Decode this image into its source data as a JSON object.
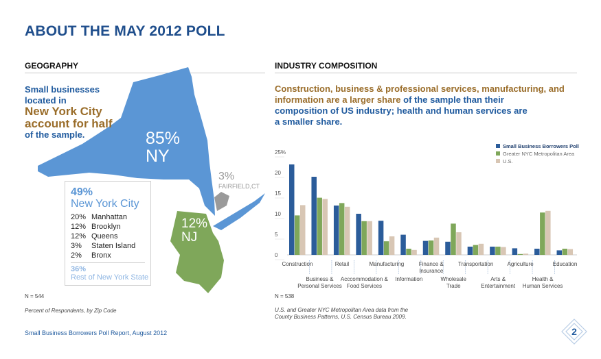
{
  "title": "ABOUT THE MAY 2012 POLL",
  "geography": {
    "heading": "GEOGRAPHY",
    "intro_line1": "Small businesses",
    "intro_line2": "located in",
    "highlight_line1": "New York City",
    "highlight_line2": "account for half",
    "outro": "of the sample.",
    "ny_pct": "85%",
    "ny_label": "NY",
    "ct_pct": "3%",
    "ct_label": "FAIRFIELD,CT",
    "nj_pct": "12%",
    "nj_label": "NJ",
    "nyc_box": {
      "pct": "49%",
      "label": "New York City",
      "rows": [
        {
          "pct": "20%",
          "name": "Manhattan"
        },
        {
          "pct": "12%",
          "name": "Brooklyn"
        },
        {
          "pct": "12%",
          "name": "Queens"
        },
        {
          "pct": "3%",
          "name": "Staten Island"
        },
        {
          "pct": "2%",
          "name": "Bronx"
        }
      ],
      "rest_pct": "36%",
      "rest_label": "Rest of New York State"
    },
    "n_note": "N = 544",
    "footnote": "Percent of Respondents, by Zip Code"
  },
  "industry": {
    "heading": "INDUSTRY COMPOSITION",
    "summary_gold": "Construction, business & professional services, manufacturing, and information are a larger share",
    "summary_blue1": " of the sample than their",
    "summary_blue2": "composition of US industry; health and human services are",
    "summary_blue3": "a smaller share.",
    "n_note": "N = 538",
    "source_line1": "U.S. and Greater NYC Metropolitan Area data from the",
    "source_line2": "County Business Patterns, U.S. Census Bureau 2009."
  },
  "footer": {
    "report": "Small Business Borrowers Poll Report, August 2012",
    "page": "2"
  },
  "colors": {
    "navy": "#2b5c9a",
    "green": "#7fa75a",
    "tan": "#d8c6b4",
    "title_blue": "#1f4e8c",
    "gold": "#9a6d2a",
    "map_blue": "#5b96d5",
    "map_green": "#7fa75a",
    "map_gray": "#9a9a9a"
  },
  "chart_data": {
    "type": "bar",
    "ylim": [
      0,
      25
    ],
    "yticks": [
      "25%",
      "20",
      "15",
      "10",
      "5",
      "0"
    ],
    "categories": [
      "Construction",
      "Business & Personal Services",
      "Retail",
      "Acccommodation & Food Services",
      "Manufacturing",
      "Information",
      "Finance & Insurance",
      "Wholesale Trade",
      "Transportation",
      "Arts & Entertainment",
      "Agriculture",
      "Health & Human Services",
      "Education"
    ],
    "category_labels": [
      {
        "top": "Construction",
        "bottom": ""
      },
      {
        "top": "",
        "bottom": "Business &|Personal Services"
      },
      {
        "top": "Retail",
        "bottom": ""
      },
      {
        "top": "",
        "bottom": "Acccommodation &|Food Services"
      },
      {
        "top": "Manufacturing",
        "bottom": ""
      },
      {
        "top": "",
        "bottom": "Information"
      },
      {
        "top": "Finance &|Insurance",
        "bottom": ""
      },
      {
        "top": "",
        "bottom": "Wholesale|Trade"
      },
      {
        "top": "Transportation",
        "bottom": ""
      },
      {
        "top": "",
        "bottom": "Arts &|Entertainment"
      },
      {
        "top": "Agriculture",
        "bottom": ""
      },
      {
        "top": "",
        "bottom": "Health &|Human Services"
      },
      {
        "top": "Education",
        "bottom": ""
      }
    ],
    "series": [
      {
        "name": "Small Business Borrowers Poll",
        "values": [
          22,
          19,
          12,
          10,
          8.3,
          4.9,
          3.4,
          3.2,
          2.0,
          2.0,
          1.6,
          1.5,
          1.1
        ]
      },
      {
        "name": "Greater NYC Metropolitan Area",
        "values": [
          9.6,
          13.9,
          12.6,
          8.2,
          3.3,
          1.5,
          3.5,
          7.6,
          2.4,
          2.0,
          0.2,
          10.3,
          1.5
        ]
      },
      {
        "name": "U.S.",
        "values": [
          12.1,
          13.6,
          11.7,
          8.2,
          4.5,
          1.2,
          4.2,
          5.5,
          2.7,
          1.9,
          0.3,
          10.7,
          1.4
        ]
      }
    ],
    "legend_position": "top-right"
  }
}
